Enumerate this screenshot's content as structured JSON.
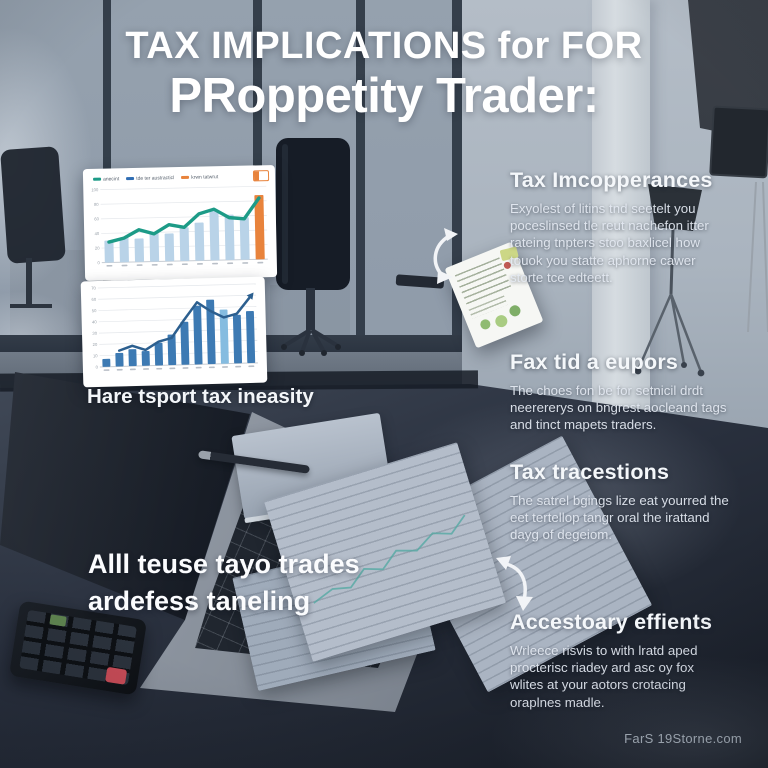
{
  "title": {
    "line1": "TAX IMPLICATIONS for FOR",
    "line2": "PRoppetity Trader:"
  },
  "left_column": {
    "charts_caption": "Hare tsport tax ineasity",
    "note_line1": "Alll teuse tayo trades",
    "note_line2": "ardefess taneling"
  },
  "sections": [
    {
      "heading": "Tax Imcopperances",
      "body": "Exyolest of litins tnd seetelt you poceslinsed tle reut nachefon itter rateing tnpters stoo baxlicel how touok you statte aphorne cawer storte tce edteett."
    },
    {
      "heading": "Fax tid a eupors",
      "body": "The choes fon be for setnicil drdt neerererys on bngrest aocleand tags and tinct mapets traders."
    },
    {
      "heading": "Tax tracestions",
      "body": "The satrel bgings lize eat yourred the eet tertellop tangr oral the irattand dayg of degeiom."
    },
    {
      "heading": "Accestoary effients",
      "body": "Wrleece risvis to with lratd aped procterisc riadey ard asc oy fox wlites at your aotors crotacing oraplnes madle."
    }
  ],
  "footer": {
    "watermark": "FarS 19Storne.com"
  },
  "colors": {
    "accent_orange": "#e8833c",
    "teal": "#1d9b87",
    "bar_blue": "#3d7ab3",
    "bar_light_blue": "#b9d3e8",
    "bar_pale_highlight": "#85bce0",
    "line_dark_blue": "#2c5f8f"
  },
  "icons": {
    "arrow_top": "curved-double-headed-arrow",
    "arrow_bottom": "curved-double-headed-arrow",
    "mini_card": "report-card-with-green-chart",
    "legend_icon": "orange-outlined-box"
  },
  "chart_data": [
    {
      "type": "bar",
      "title": "",
      "categories": [
        1,
        2,
        3,
        4,
        5,
        6,
        7,
        8,
        9,
        10,
        11
      ],
      "series": [
        {
          "name": "bars",
          "kind": "bar",
          "values": [
            30,
            34,
            32,
            40,
            38,
            46,
            52,
            68,
            62,
            58,
            88
          ],
          "color": "#b9d3e8",
          "highlight": {
            "index": 10,
            "color": "#e8833c"
          }
        },
        {
          "name": "trend line",
          "kind": "line",
          "width": 3.4,
          "values": [
            28,
            33,
            44,
            38,
            50,
            46,
            64,
            70,
            58,
            56,
            84
          ],
          "color": "#1d9b87"
        }
      ],
      "ylim": [
        0,
        100
      ],
      "y_ticks": [
        0,
        20,
        40,
        60,
        80,
        100
      ],
      "grid": true,
      "legend": {
        "position": "top",
        "items": [
          {
            "label": "anecint",
            "color": "#1d9b87"
          },
          {
            "label": "tde ter austracticl",
            "color": "#2f6db3"
          },
          {
            "label": "krwn tatwrut",
            "color": "#e8833c"
          }
        ]
      }
    },
    {
      "type": "bar",
      "title": "",
      "categories": [
        1,
        2,
        3,
        4,
        5,
        6,
        7,
        8,
        9,
        10,
        11,
        12
      ],
      "series": [
        {
          "name": "bars",
          "kind": "bar",
          "values": [
            7,
            12,
            15,
            13,
            20,
            27,
            38,
            52,
            57,
            48,
            43,
            46
          ],
          "color": "#3d7ab3",
          "highlight": {
            "index": 9,
            "color": "#85bce0"
          }
        },
        {
          "name": "trend line",
          "kind": "line",
          "width": 2.5,
          "arrow_end": true,
          "values": [
            null,
            14,
            18,
            14,
            21,
            24,
            40,
            55,
            47,
            41,
            44,
            58
          ],
          "color": "#2c5f8f"
        }
      ],
      "ylim": [
        0,
        70
      ],
      "y_ticks": [
        0,
        10,
        20,
        30,
        40,
        50,
        60,
        70
      ],
      "grid": true,
      "legend": {
        "position": "none",
        "items": []
      }
    }
  ]
}
